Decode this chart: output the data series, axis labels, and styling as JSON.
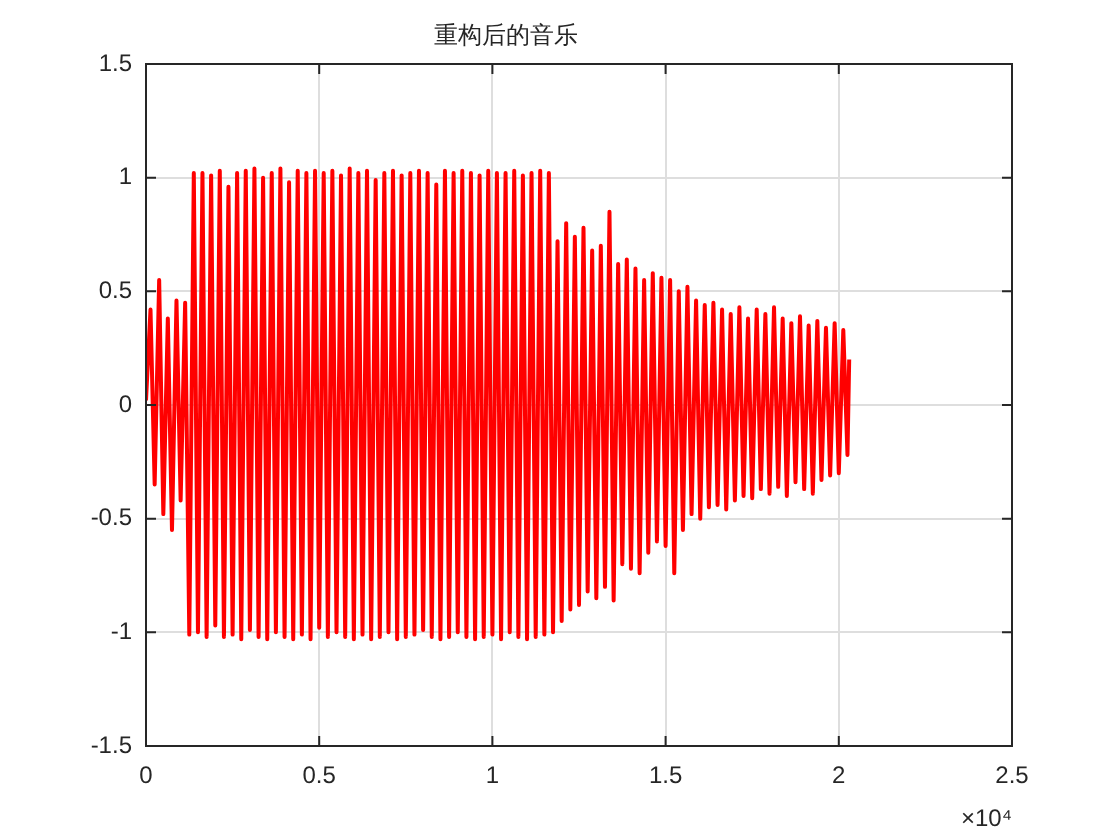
{
  "chart_data": {
    "type": "line",
    "title": "重构后的音乐",
    "x": [
      0,
      0.013,
      0.025,
      0.038,
      0.05,
      0.063,
      0.075,
      0.088,
      0.1,
      0.113,
      0.125,
      0.138,
      0.15,
      0.163,
      0.175,
      0.188,
      0.2,
      0.213,
      0.225,
      0.238,
      0.25,
      0.263,
      0.275,
      0.288,
      0.3,
      0.313,
      0.325,
      0.338,
      0.35,
      0.363,
      0.375,
      0.388,
      0.4,
      0.413,
      0.425,
      0.438,
      0.45,
      0.463,
      0.475,
      0.488,
      0.5,
      0.513,
      0.525,
      0.538,
      0.55,
      0.563,
      0.575,
      0.588,
      0.6,
      0.613,
      0.625,
      0.638,
      0.65,
      0.663,
      0.675,
      0.688,
      0.7,
      0.713,
      0.725,
      0.738,
      0.75,
      0.763,
      0.775,
      0.788,
      0.8,
      0.813,
      0.825,
      0.838,
      0.85,
      0.863,
      0.875,
      0.888,
      0.9,
      0.913,
      0.925,
      0.938,
      0.95,
      0.963,
      0.975,
      0.988,
      1,
      1.013,
      1.025,
      1.038,
      1.05,
      1.063,
      1.075,
      1.088,
      1.1,
      1.113,
      1.125,
      1.138,
      1.15,
      1.163,
      1.175,
      1.188,
      1.2,
      1.213,
      1.225,
      1.238,
      1.25,
      1.263,
      1.275,
      1.288,
      1.3,
      1.313,
      1.325,
      1.338,
      1.35,
      1.363,
      1.375,
      1.388,
      1.4,
      1.413,
      1.425,
      1.438,
      1.45,
      1.463,
      1.475,
      1.488,
      1.5,
      1.513,
      1.525,
      1.538,
      1.55,
      1.563,
      1.575,
      1.588,
      1.6,
      1.613,
      1.625,
      1.638,
      1.65,
      1.663,
      1.675,
      1.688,
      1.7,
      1.713,
      1.725,
      1.738,
      1.75,
      1.763,
      1.775,
      1.788,
      1.8,
      1.813,
      1.825,
      1.838,
      1.85,
      1.863,
      1.875,
      1.888,
      1.9,
      1.913,
      1.925,
      1.938,
      1.95,
      1.963,
      1.975,
      1.988,
      2,
      2.013,
      2.025,
      2.03
    ],
    "series": [
      {
        "color": "#ff0000",
        "values": [
          0.02,
          0.42,
          -0.35,
          0.55,
          -0.48,
          0.38,
          -0.55,
          0.46,
          -0.42,
          0.45,
          -1.01,
          1.02,
          -1.0,
          1.02,
          -1.02,
          1.01,
          -0.97,
          1.03,
          -1.02,
          0.96,
          -1.01,
          1.02,
          -1.03,
          1.03,
          -0.99,
          1.04,
          -1.02,
          1.0,
          -1.03,
          1.02,
          -1.0,
          1.04,
          -1.02,
          0.98,
          -1.03,
          1.03,
          -1.01,
          1.02,
          -1.03,
          1.03,
          -0.98,
          1.02,
          -1.02,
          1.03,
          -1.0,
          1.01,
          -1.02,
          1.04,
          -1.03,
          1.02,
          -1.01,
          1.03,
          -1.03,
          0.99,
          -1.02,
          1.02,
          -1.0,
          1.03,
          -1.03,
          1.01,
          -1.02,
          1.02,
          -1.01,
          1.03,
          -0.99,
          1.02,
          -1.02,
          0.97,
          -1.03,
          1.03,
          -1.02,
          1.02,
          -1.0,
          1.03,
          -1.02,
          1.02,
          -1.03,
          1.01,
          -1.02,
          1.03,
          -1.01,
          1.02,
          -1.03,
          1.02,
          -1.0,
          1.03,
          -1.02,
          1.01,
          -1.03,
          1.02,
          -1.02,
          1.03,
          -1.01,
          1.02,
          -1.0,
          0.72,
          -0.95,
          0.8,
          -0.9,
          0.74,
          -0.88,
          0.78,
          -0.82,
          0.68,
          -0.85,
          0.7,
          -0.8,
          0.85,
          -0.86,
          0.62,
          -0.7,
          0.64,
          -0.72,
          0.6,
          -0.74,
          0.55,
          -0.65,
          0.58,
          -0.6,
          0.56,
          -0.62,
          0.55,
          -0.74,
          0.5,
          -0.55,
          0.52,
          -0.48,
          0.46,
          -0.5,
          0.44,
          -0.45,
          0.45,
          -0.44,
          0.42,
          -0.46,
          0.4,
          -0.42,
          0.43,
          -0.4,
          0.38,
          -0.41,
          0.42,
          -0.37,
          0.4,
          -0.39,
          0.43,
          -0.36,
          0.38,
          -0.4,
          0.36,
          -0.34,
          0.39,
          -0.37,
          0.35,
          -0.39,
          0.37,
          -0.33,
          0.34,
          -0.31,
          0.36,
          -0.3,
          0.33,
          -0.22,
          0.2
        ]
      }
    ],
    "xlim": [
      0,
      2.5
    ],
    "xticks": [
      0,
      0.5,
      1,
      1.5,
      2,
      2.5
    ],
    "ylim": [
      -1.5,
      1.5
    ],
    "yticks": [
      -1.5,
      -1,
      -0.5,
      0,
      0.5,
      1,
      1.5
    ],
    "grid": true,
    "legend": false,
    "marker": "none",
    "line_style": "solid",
    "annotations": [
      "×10⁴"
    ]
  }
}
